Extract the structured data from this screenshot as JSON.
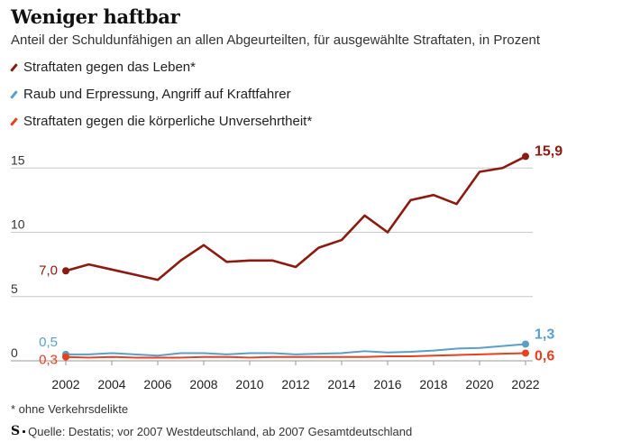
{
  "header": {
    "title": "Weniger haftbar",
    "subtitle": "Anteil der Schuldunfähigen an allen Abgeurteilten, für ausgewählte Straftaten, in Prozent"
  },
  "legend": [
    {
      "label": "Straftaten gegen das Leben*",
      "color": "#8b1a10"
    },
    {
      "label": "Raub und Erpressung, Angriff auf Kraftfahrer",
      "color": "#5b9ec9"
    },
    {
      "label": "Straftaten gegen die körperliche Unversehrtheit*",
      "color": "#e8401c"
    }
  ],
  "chart_data": {
    "type": "line",
    "title": "Weniger haftbar",
    "xlabel": "",
    "ylabel": "",
    "xlim": [
      2002,
      2022
    ],
    "ylim": [
      0,
      17
    ],
    "yticks": [
      0,
      5,
      10,
      15
    ],
    "xticks": [
      2002,
      2004,
      2006,
      2008,
      2010,
      2012,
      2014,
      2016,
      2018,
      2020,
      2022
    ],
    "x": [
      2002,
      2003,
      2004,
      2005,
      2006,
      2007,
      2008,
      2009,
      2010,
      2011,
      2012,
      2013,
      2014,
      2015,
      2016,
      2017,
      2018,
      2019,
      2020,
      2021,
      2022
    ],
    "series": [
      {
        "name": "Straftaten gegen das Leben*",
        "color": "#8b1a10",
        "values": [
          7.0,
          7.5,
          7.1,
          6.7,
          6.3,
          7.8,
          9.0,
          7.7,
          7.8,
          7.8,
          7.3,
          8.8,
          9.4,
          11.3,
          10.0,
          12.5,
          12.9,
          12.2,
          14.7,
          15.0,
          15.9
        ],
        "start_label": "7,0",
        "end_label": "15,9"
      },
      {
        "name": "Raub und Erpressung, Angriff auf Kraftfahrer",
        "color": "#5b9ec9",
        "values": [
          0.5,
          0.5,
          0.6,
          0.5,
          0.4,
          0.6,
          0.6,
          0.5,
          0.6,
          0.6,
          0.5,
          0.55,
          0.6,
          0.75,
          0.65,
          0.7,
          0.8,
          0.95,
          1.0,
          1.15,
          1.3
        ],
        "start_label": "0,5",
        "end_label": "1,3"
      },
      {
        "name": "Straftaten gegen die körperliche Unversehrtheit*",
        "color": "#e8401c",
        "values": [
          0.3,
          0.25,
          0.3,
          0.25,
          0.25,
          0.25,
          0.3,
          0.3,
          0.25,
          0.3,
          0.3,
          0.3,
          0.3,
          0.3,
          0.35,
          0.35,
          0.4,
          0.45,
          0.5,
          0.55,
          0.6
        ],
        "start_label": "0,3",
        "end_label": "0,6"
      }
    ]
  },
  "footer": {
    "footnote": "* ohne Verkehrsdelikte",
    "logo": "S",
    "source": "Quelle: Destatis; vor 2007 Westdeutschland, ab 2007 Gesamtdeutschland"
  }
}
